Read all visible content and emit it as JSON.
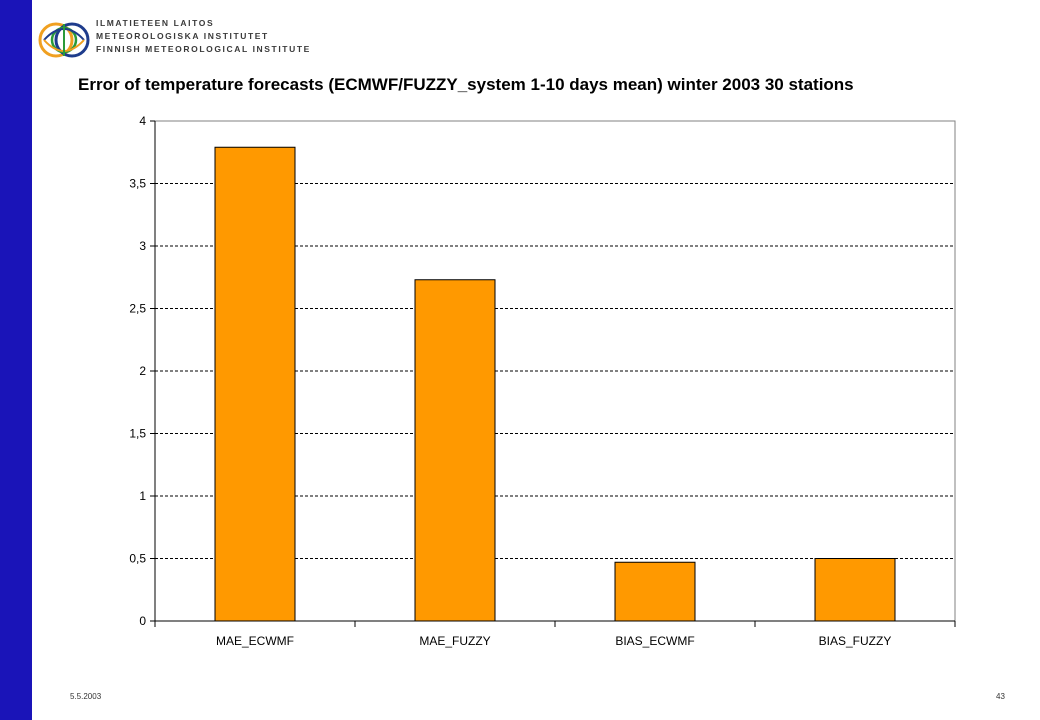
{
  "header": {
    "logo_lines": [
      "ILMATIETEEN LAITOS",
      "METEOROLOGISKA INSTITUTET",
      "FINNISH METEOROLOGICAL INSTITUTE"
    ],
    "title": "Error of temperature forecasts (ECMWF/FUZZY_system 1-10 days mean)  winter 2003 30 stations"
  },
  "footer": {
    "date": "5.5.2003",
    "page": "43"
  },
  "colors": {
    "sidebar": "#1a14b8",
    "bar": "#ff9900",
    "bar_border": "#000000"
  },
  "chart_data": {
    "type": "bar",
    "title": "Error of temperature forecasts (ECMWF/FUZZY_system 1-10 days mean)  winter 2003 30 stations",
    "xlabel": "",
    "ylabel": "",
    "categories": [
      "MAE_ECWMF",
      "MAE_FUZZY",
      "BIAS_ECWMF",
      "BIAS_FUZZY"
    ],
    "values": [
      3.79,
      2.73,
      0.47,
      0.5
    ],
    "ylim": [
      0,
      4
    ],
    "yticks": [
      0,
      0.5,
      1,
      1.5,
      2,
      2.5,
      3,
      3.5,
      4
    ],
    "ytick_labels": [
      "0",
      "0,5",
      "1",
      "1,5",
      "2",
      "2,5",
      "3",
      "3,5",
      "4"
    ],
    "grid": true,
    "legend": "none"
  }
}
